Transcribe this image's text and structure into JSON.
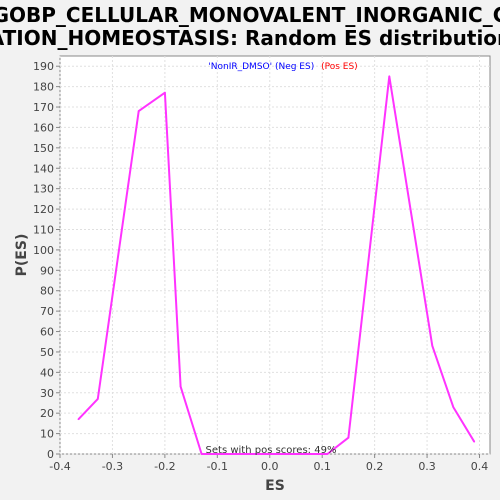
{
  "chart_data": {
    "type": "line",
    "title_line1": "GOBP_CELLULAR_MONOVALENT_INORGANIC_C",
    "title_line2": "ATION_HOMEOSTASIS: Random ES distribution",
    "xlabel": "ES",
    "ylabel": "P(ES)",
    "xlim": [
      -0.4,
      0.42
    ],
    "ylim": [
      0,
      195
    ],
    "xticks": [
      -0.4,
      -0.3,
      -0.2,
      -0.1,
      0.0,
      0.1,
      0.2,
      0.3,
      0.4
    ],
    "xtick_labels": [
      "-0.4",
      "-0.3",
      "-0.2",
      "-0.1",
      "0.0",
      "0.1",
      "0.2",
      "0.3",
      "0.4"
    ],
    "yticks": [
      0,
      10,
      20,
      30,
      40,
      50,
      60,
      70,
      80,
      90,
      100,
      110,
      120,
      130,
      140,
      150,
      160,
      170,
      180,
      190
    ],
    "ytick_labels": [
      "0",
      "10",
      "20",
      "30",
      "40",
      "50",
      "60",
      "70",
      "80",
      "90",
      "100",
      "110",
      "120",
      "130",
      "140",
      "150",
      "160",
      "170",
      "180",
      "190"
    ],
    "grid": true,
    "legend": {
      "placement": "top-center",
      "entries": [
        {
          "text": "'NonIR_DMSO' (Neg ES)",
          "color": "#0000ff"
        },
        {
          "text": "(Pos ES)",
          "color": "#ff0000"
        }
      ]
    },
    "annotation": "Sets with pos scores: 49%",
    "series": [
      {
        "color": "#ff33ff",
        "x": [
          -0.365,
          -0.328,
          -0.25,
          -0.2,
          -0.17,
          -0.13,
          -0.09,
          0.11,
          0.15,
          0.228,
          0.31,
          0.35,
          0.39
        ],
        "y": [
          17,
          27,
          168,
          177,
          33,
          0,
          0,
          0,
          8,
          185,
          53,
          23,
          6
        ]
      }
    ]
  }
}
